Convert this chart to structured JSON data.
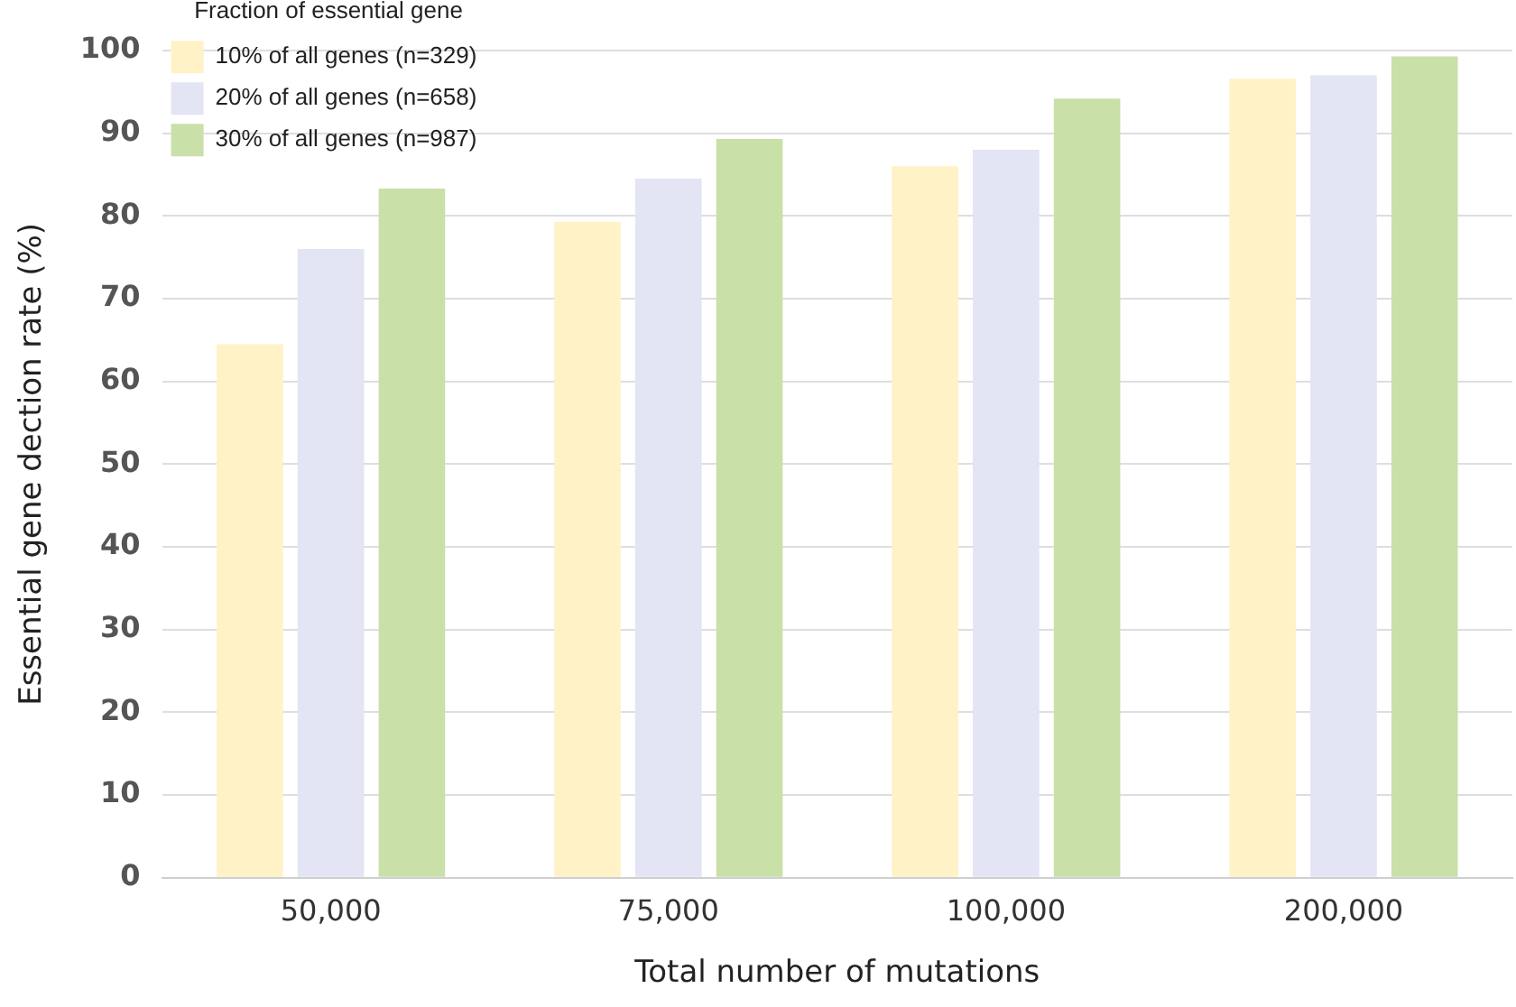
{
  "chart_data": {
    "type": "bar",
    "xlabel": "Total number of mutations",
    "ylabel": "Essential gene dection rate (%)",
    "legend_title": "Fraction of essential gene",
    "categories": [
      "50,000",
      "75,000",
      "100,000",
      "200,000"
    ],
    "series": [
      {
        "name": "10% of all genes (n=329)",
        "color": "#fff2c6",
        "values": [
          64.5,
          79.3,
          86,
          96.6
        ]
      },
      {
        "name": "20% of all genes (n=658)",
        "color": "#e3e4f4",
        "values": [
          76,
          84.5,
          88,
          97
        ]
      },
      {
        "name": "30% of all genes (n=987)",
        "color": "#c9e0a9",
        "values": [
          83.3,
          89.3,
          94.2,
          99.3
        ]
      }
    ],
    "ylim": [
      0,
      100
    ],
    "yticks": [
      0,
      10,
      20,
      30,
      40,
      50,
      60,
      70,
      80,
      90,
      100
    ],
    "grid": "y",
    "legend": "top left"
  }
}
